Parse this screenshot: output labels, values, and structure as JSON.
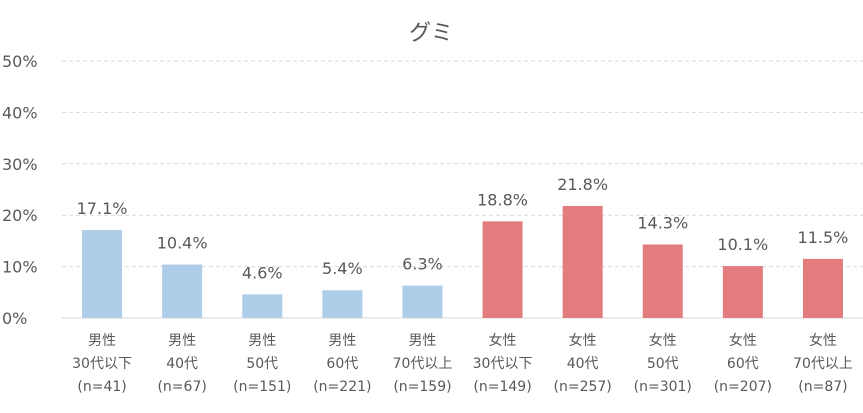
{
  "chart_data": {
    "type": "bar",
    "title": "グミ",
    "ylim": [
      0,
      50
    ],
    "yticks": [
      "0%",
      "10%",
      "20%",
      "30%",
      "40%",
      "50%"
    ],
    "grid": true,
    "categories": [
      [
        "男性",
        "30代以下",
        "(n=41)"
      ],
      [
        "男性",
        "40代",
        "(n=67)"
      ],
      [
        "男性",
        "50代",
        "(n=151)"
      ],
      [
        "男性",
        "60代",
        "(n=221)"
      ],
      [
        "男性",
        "70代以上",
        "(n=159)"
      ],
      [
        "女性",
        "30代以下",
        "(n=149)"
      ],
      [
        "女性",
        "40代",
        "(n=257)"
      ],
      [
        "女性",
        "50代",
        "(n=301)"
      ],
      [
        "女性",
        "60代",
        "(n=207)"
      ],
      [
        "女性",
        "70代以上",
        "(n=87)"
      ]
    ],
    "values": [
      17.1,
      10.4,
      4.6,
      5.4,
      6.3,
      18.8,
      21.8,
      14.3,
      10.1,
      11.5
    ],
    "data_labels": [
      "17.1%",
      "10.4%",
      "4.6%",
      "5.4%",
      "6.3%",
      "18.8%",
      "21.8%",
      "14.3%",
      "10.1%",
      "11.5%"
    ],
    "colors": [
      "#aecde9",
      "#aecde9",
      "#aecde9",
      "#aecde9",
      "#aecde9",
      "#e27c7e",
      "#e27c7e",
      "#e27c7e",
      "#e27c7e",
      "#e27c7e"
    ]
  }
}
